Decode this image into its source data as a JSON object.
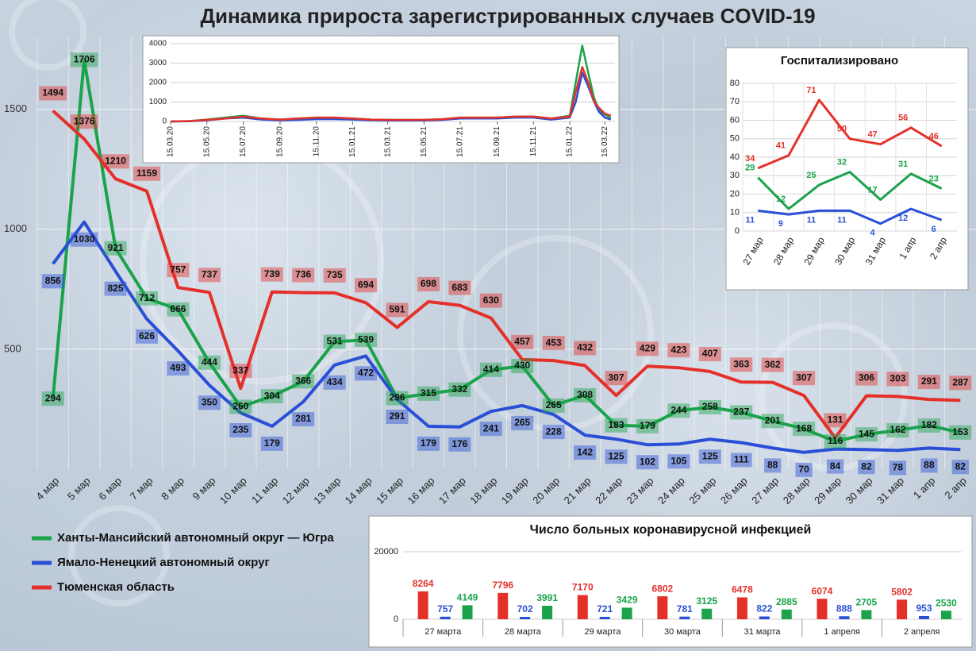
{
  "chart_data": [
    {
      "type": "line",
      "title": "Динамика прироста зарегистрированных случаев COVID-19",
      "categories": [
        "4 мар",
        "5 мар",
        "6 мар",
        "7 мар",
        "8 мар",
        "9 мар",
        "10 мар",
        "11 мар",
        "12 мар",
        "13 мар",
        "14 мар",
        "15 мар",
        "16 мар",
        "17 мар",
        "18 мар",
        "19 мар",
        "20 мар",
        "21 мар",
        "22 мар",
        "23 мар",
        "24 мар",
        "25 мар",
        "26 мар",
        "27 мар",
        "28 мар",
        "29 мар",
        "30 мар",
        "31 мар",
        "1 апр",
        "2 апр"
      ],
      "series": [
        {
          "name": "Ханты-Мансийский автономный округ — Югра",
          "color": "#1aa34a",
          "values": [
            294,
            1706,
            921,
            712,
            666,
            444,
            260,
            304,
            366,
            531,
            539,
            296,
            315,
            332,
            414,
            430,
            265,
            308,
            183,
            179,
            244,
            258,
            237,
            201,
            168,
            116,
            145,
            162,
            182,
            153
          ]
        },
        {
          "name": "Ямало-Ненецкий автономный округ",
          "color": "#2a4fd6",
          "values": [
            856,
            1030,
            825,
            626,
            493,
            350,
            235,
            179,
            281,
            434,
            472,
            291,
            179,
            176,
            241,
            265,
            228,
            142,
            125,
            102,
            105,
            125,
            111,
            88,
            70,
            84,
            82,
            78,
            88,
            82
          ]
        },
        {
          "name": "Тюменская область",
          "color": "#e5302a",
          "values": [
            1494,
            1376,
            1210,
            1159,
            757,
            737,
            337,
            739,
            736,
            735,
            694,
            591,
            698,
            683,
            630,
            457,
            453,
            432,
            307,
            429,
            423,
            407,
            363,
            362,
            307,
            131,
            306,
            303,
            291,
            287
          ]
        }
      ],
      "ylim": [
        0,
        1800
      ],
      "yticks": [
        500,
        1000,
        1500
      ],
      "grid": true,
      "legend": "lower left"
    },
    {
      "type": "line",
      "x": [
        "15.03.20",
        "15.04.20",
        "15.05.20",
        "15.06.20",
        "15.07.20",
        "15.08.20",
        "15.09.20",
        "15.10.20",
        "15.11.20",
        "15.12.20",
        "15.01.21",
        "15.02.21",
        "15.03.21",
        "15.04.21",
        "15.05.21",
        "15.06.21",
        "15.07.21",
        "15.08.21",
        "15.09.21",
        "15.10.21",
        "15.11.21",
        "15.12.21",
        "15.01.22",
        "25.01.22",
        "05.02.22",
        "15.02.22",
        "25.02.22",
        "05.03.22",
        "15.03.22",
        "25.03.22"
      ],
      "series": [
        {
          "color": "#1aa34a",
          "values": [
            0,
            20,
            100,
            200,
            300,
            150,
            100,
            150,
            200,
            200,
            150,
            100,
            80,
            80,
            80,
            120,
            200,
            200,
            200,
            250,
            250,
            150,
            300,
            2000,
            3900,
            2500,
            1200,
            600,
            350,
            200
          ]
        },
        {
          "color": "#2a4fd6",
          "values": [
            0,
            10,
            60,
            150,
            200,
            100,
            60,
            80,
            120,
            120,
            100,
            60,
            50,
            50,
            50,
            80,
            150,
            150,
            150,
            200,
            200,
            100,
            200,
            1000,
            2500,
            1800,
            1000,
            500,
            200,
            100
          ]
        },
        {
          "color": "#e5302a",
          "values": [
            0,
            20,
            80,
            150,
            250,
            150,
            100,
            150,
            200,
            200,
            150,
            100,
            80,
            80,
            80,
            120,
            200,
            200,
            200,
            250,
            250,
            150,
            250,
            1500,
            2800,
            2000,
            1000,
            700,
            400,
            300
          ]
        }
      ],
      "xlim": [
        "15.03.20",
        "01.04.22"
      ],
      "xticks": [
        "15.03.20",
        "15.05.20",
        "15.07.20",
        "15.09.20",
        "15.11.20",
        "15.01.21",
        "15.03.21",
        "15.05.21",
        "15.07.21",
        "15.09.21",
        "15.11.21",
        "15.01.22",
        "15.03.22"
      ],
      "ylim": [
        0,
        4000
      ],
      "yticks": [
        0,
        1000,
        2000,
        3000,
        4000
      ],
      "grid": true
    },
    {
      "type": "line",
      "title": "Госпитализировано",
      "categories": [
        "27 мар",
        "28 мар",
        "29 мар",
        "30 мар",
        "31 мар",
        "1 апр",
        "2 апр"
      ],
      "series": [
        {
          "color": "#1aa34a",
          "values": [
            29,
            12,
            25,
            32,
            17,
            31,
            23
          ]
        },
        {
          "color": "#2a4fd6",
          "values": [
            11,
            9,
            11,
            11,
            4,
            12,
            6
          ]
        },
        {
          "color": "#e5302a",
          "values": [
            34,
            41,
            71,
            50,
            47,
            56,
            46
          ]
        }
      ],
      "ylim": [
        0,
        80
      ],
      "yticks": [
        0,
        10,
        20,
        30,
        40,
        50,
        60,
        70,
        80
      ],
      "grid": true
    },
    {
      "type": "bar",
      "title": "Число больных коронавирусной  инфекцией",
      "categories": [
        "27 марта",
        "28 марта",
        "29 марта",
        "30 марта",
        "31 марта",
        "1 апреля",
        "2 апреля"
      ],
      "series": [
        {
          "color": "#e5302a",
          "values": [
            8264,
            7796,
            7170,
            6802,
            6478,
            6074,
            5802
          ]
        },
        {
          "color": "#2a4fd6",
          "values": [
            757,
            702,
            721,
            781,
            822,
            888,
            953
          ]
        },
        {
          "color": "#1aa34a",
          "values": [
            4149,
            3991,
            3429,
            3125,
            2885,
            2705,
            2530
          ]
        }
      ],
      "ylim": [
        0,
        20000
      ],
      "yticks": [
        0,
        20000
      ],
      "grid": true
    }
  ]
}
